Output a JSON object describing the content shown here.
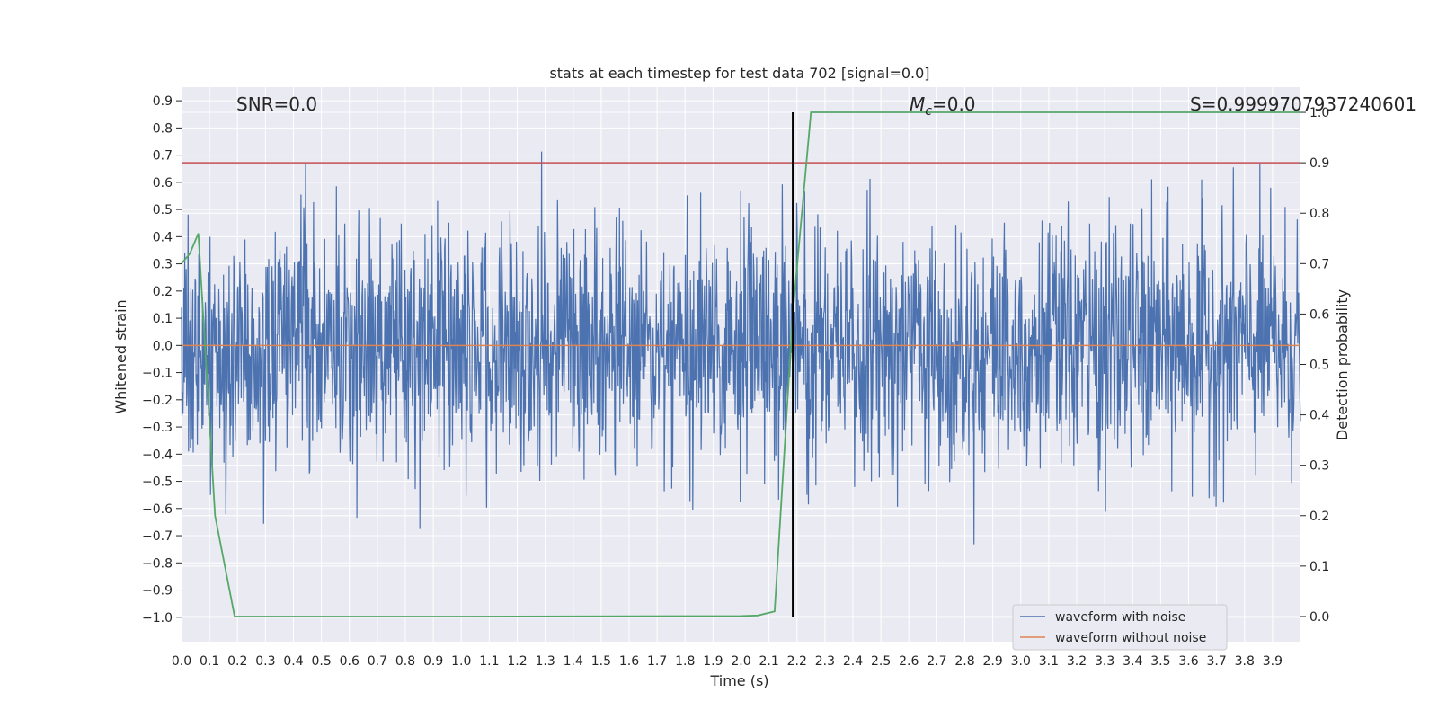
{
  "chart_data": {
    "type": "line",
    "title": "stats at each timestep for test data 702 [signal=0.0]",
    "xlabel": "Time (s)",
    "ylabel": "Whitened strain",
    "y2label": "Detection probability",
    "xlim": [
      0.0,
      4.0
    ],
    "ylim": [
      -1.09,
      0.95
    ],
    "y2lim": [
      -0.05,
      1.05
    ],
    "xticks": [
      "0.0",
      "0.1",
      "0.2",
      "0.3",
      "0.4",
      "0.5",
      "0.6",
      "0.7",
      "0.8",
      "0.9",
      "1.0",
      "1.1",
      "1.2",
      "1.3",
      "1.4",
      "1.5",
      "1.6",
      "1.7",
      "1.8",
      "1.9",
      "2.0",
      "2.1",
      "2.2",
      "2.3",
      "2.4",
      "2.5",
      "2.6",
      "2.7",
      "2.8",
      "2.9",
      "3.0",
      "3.1",
      "3.2",
      "3.3",
      "3.4",
      "3.5",
      "3.6",
      "3.7",
      "3.8",
      "3.9"
    ],
    "yticks": [
      "0.9",
      "0.8",
      "0.7",
      "0.6",
      "0.5",
      "0.4",
      "0.3",
      "0.2",
      "0.1",
      "0.0",
      "−0.1",
      "−0.2",
      "−0.3",
      "−0.4",
      "−0.5",
      "−0.6",
      "−0.7",
      "−0.8",
      "−0.9",
      "−1.0"
    ],
    "y2ticks": [
      "1.0",
      "0.9",
      "0.8",
      "0.7",
      "0.6",
      "0.5",
      "0.4",
      "0.3",
      "0.2",
      "0.1",
      "0.0"
    ],
    "grid": true,
    "legend_position": "lower-right",
    "annotations": {
      "snr": "SNR=0.0",
      "mc_symbol": "M",
      "mc_sub": "c",
      "mc_value": "=0.0",
      "s": "S=0.9999707937240601"
    },
    "threshold_probability": 0.9,
    "trigger_time": 2.185,
    "series": [
      {
        "name": "waveform with noise",
        "axis": "left",
        "color": "#4c72b0",
        "description_of_values": "random noise, amplitude about 0.5",
        "noise_amplitude": 0.5
      },
      {
        "name": "waveform without noise",
        "axis": "left",
        "color": "#dd8452",
        "x": [
          0.0,
          4.0
        ],
        "y": [
          0.0,
          0.0
        ]
      },
      {
        "axis": "right",
        "color": "#55a868",
        "x": [
          0.0,
          0.03,
          0.06,
          0.12,
          0.19,
          0.25,
          1.0,
          2.0,
          2.06,
          2.12,
          2.185,
          2.25,
          4.0
        ],
        "y": [
          0.7,
          0.72,
          0.76,
          0.2,
          0.0,
          0.0,
          0.0,
          0.001,
          0.002,
          0.01,
          0.6,
          1.0,
          1.0
        ]
      }
    ]
  },
  "colors": {
    "plot_bg": "#eaeaf2",
    "grid": "#ffffff",
    "threshold": "#c44e52",
    "trigger": "#000000"
  }
}
